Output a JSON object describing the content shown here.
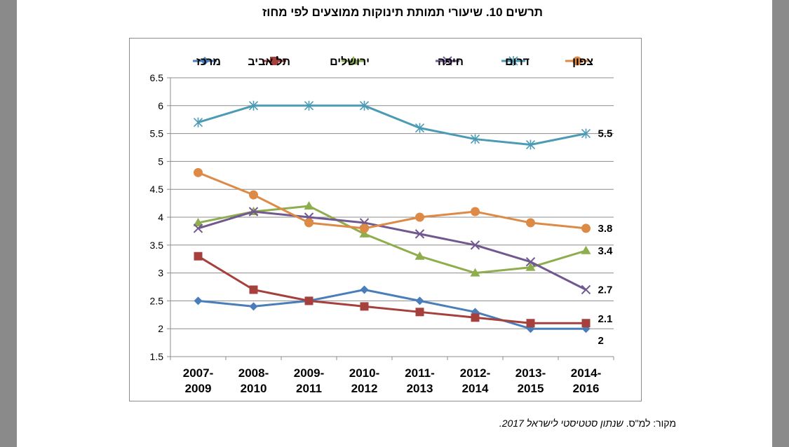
{
  "title": "תרשים 10. שיעורי תמותת תינוקות ממוצעים לפי מחוז",
  "source": {
    "label": "מקור: למ\"ס.",
    "text": "שנתון סטטיסטי לישראל 2017."
  },
  "chart_data": {
    "type": "line",
    "title": "תרשים 10. שיעורי תמותת תינוקות ממוצעים לפי מחוז",
    "xlabel": "",
    "ylabel": "",
    "ylim": [
      1.5,
      6.5
    ],
    "yticks": [
      1.5,
      2,
      2.5,
      3,
      3.5,
      4,
      4.5,
      5,
      5.5,
      6,
      6.5
    ],
    "grid": true,
    "legend_position": "top",
    "categories": [
      [
        "2007-",
        "2009"
      ],
      [
        "2008-",
        "2010"
      ],
      [
        "2009-",
        "2011"
      ],
      [
        "2010-",
        "2012"
      ],
      [
        "2011-",
        "2013"
      ],
      [
        "2012-",
        "2014"
      ],
      [
        "2013-",
        "2015"
      ],
      [
        "2014-",
        "2016"
      ]
    ],
    "series": [
      {
        "name": "מרכז",
        "color": "#4a7ebb",
        "marker": "diamond",
        "values": [
          2.5,
          2.4,
          2.5,
          2.7,
          2.5,
          2.3,
          2.0,
          2.0
        ],
        "end_label": "2"
      },
      {
        "name": "תל אביב",
        "color": "#a5403d",
        "marker": "square",
        "values": [
          3.3,
          2.7,
          2.5,
          2.4,
          2.3,
          2.2,
          2.1,
          2.1
        ],
        "end_label": "2.1"
      },
      {
        "name": "ירושלים",
        "color": "#8ead4c",
        "marker": "triangle",
        "values": [
          3.9,
          4.1,
          4.2,
          3.7,
          3.3,
          3.0,
          3.1,
          3.4
        ],
        "end_label": "3.4"
      },
      {
        "name": "חיפה",
        "color": "#71598f",
        "marker": "x",
        "values": [
          3.8,
          4.1,
          4.0,
          3.9,
          3.7,
          3.5,
          3.2,
          2.7
        ],
        "end_label": "2.7"
      },
      {
        "name": "דרום",
        "color": "#4b9bb5",
        "marker": "star",
        "values": [
          5.7,
          6.0,
          6.0,
          6.0,
          5.6,
          5.4,
          5.3,
          5.5
        ],
        "end_label": "5.5"
      },
      {
        "name": "צפון",
        "color": "#dd8a46",
        "marker": "circle",
        "values": [
          4.8,
          4.4,
          3.9,
          3.8,
          4.0,
          4.1,
          3.9,
          3.8
        ],
        "end_label": "3.8"
      }
    ]
  }
}
